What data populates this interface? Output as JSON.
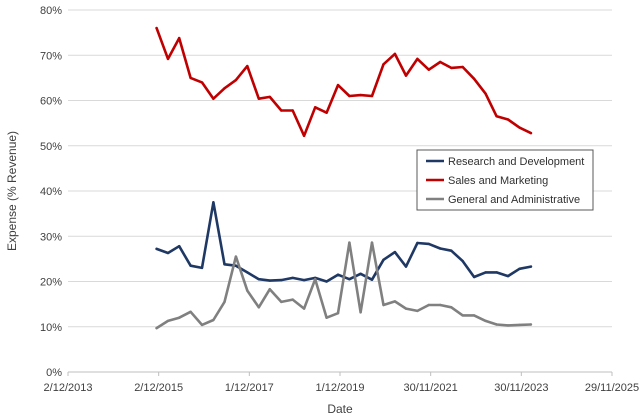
{
  "chart_data": {
    "type": "line",
    "xlabel": "Date",
    "ylabel": "Expense (% Revenue)",
    "xlim": [
      "2013-12-02",
      "2025-11-29"
    ],
    "ylim": [
      0,
      80
    ],
    "grid": "horizontal",
    "legend_position": "right",
    "x_ticks": [
      "2/12/2013",
      "2/12/2015",
      "1/12/2017",
      "1/12/2019",
      "30/11/2021",
      "30/11/2023",
      "29/11/2025"
    ],
    "y_ticks": [
      "0%",
      "10%",
      "20%",
      "30%",
      "40%",
      "50%",
      "60%",
      "70%",
      "80%"
    ],
    "y_tick_values": [
      0,
      10,
      20,
      30,
      40,
      50,
      60,
      70,
      80
    ],
    "x_tick_dates": [
      "2013-12-02",
      "2015-12-02",
      "2017-12-01",
      "2019-12-01",
      "2021-11-30",
      "2023-11-30",
      "2025-11-29"
    ],
    "series": [
      {
        "name": "Research and Development",
        "color": "#1f3864",
        "points": [
          [
            "2015-11-15",
            27.2
          ],
          [
            "2016-02-15",
            26.3
          ],
          [
            "2016-05-15",
            27.8
          ],
          [
            "2016-08-15",
            23.5
          ],
          [
            "2016-11-15",
            23.0
          ],
          [
            "2017-02-15",
            37.5
          ],
          [
            "2017-05-15",
            23.8
          ],
          [
            "2017-08-15",
            23.5
          ],
          [
            "2017-11-15",
            22.0
          ],
          [
            "2018-02-15",
            20.5
          ],
          [
            "2018-05-15",
            20.2
          ],
          [
            "2018-08-15",
            20.3
          ],
          [
            "2018-11-15",
            20.8
          ],
          [
            "2019-02-15",
            20.3
          ],
          [
            "2019-05-15",
            20.8
          ],
          [
            "2019-08-15",
            20.0
          ],
          [
            "2019-11-15",
            21.5
          ],
          [
            "2020-02-15",
            20.5
          ],
          [
            "2020-05-15",
            21.7
          ],
          [
            "2020-08-15",
            20.4
          ],
          [
            "2020-11-15",
            24.8
          ],
          [
            "2021-02-15",
            26.5
          ],
          [
            "2021-05-15",
            23.3
          ],
          [
            "2021-08-15",
            28.5
          ],
          [
            "2021-11-15",
            28.3
          ],
          [
            "2022-02-15",
            27.3
          ],
          [
            "2022-05-15",
            26.8
          ],
          [
            "2022-08-15",
            24.5
          ],
          [
            "2022-11-15",
            21.0
          ],
          [
            "2023-02-15",
            22.0
          ],
          [
            "2023-05-15",
            22.0
          ],
          [
            "2023-08-15",
            21.2
          ],
          [
            "2023-11-15",
            22.8
          ],
          [
            "2024-02-15",
            23.3
          ]
        ]
      },
      {
        "name": "Sales and Marketing",
        "color": "#c00000",
        "points": [
          [
            "2015-11-15",
            76.0
          ],
          [
            "2016-02-15",
            69.2
          ],
          [
            "2016-05-15",
            73.8
          ],
          [
            "2016-08-15",
            65.0
          ],
          [
            "2016-11-15",
            64.0
          ],
          [
            "2017-02-15",
            60.4
          ],
          [
            "2017-05-15",
            62.7
          ],
          [
            "2017-08-15",
            64.5
          ],
          [
            "2017-11-15",
            67.6
          ],
          [
            "2018-02-15",
            60.4
          ],
          [
            "2018-05-15",
            60.8
          ],
          [
            "2018-08-15",
            57.8
          ],
          [
            "2018-11-15",
            57.8
          ],
          [
            "2019-02-15",
            52.2
          ],
          [
            "2019-05-15",
            58.5
          ],
          [
            "2019-08-15",
            57.3
          ],
          [
            "2019-11-15",
            63.4
          ],
          [
            "2020-02-15",
            61.0
          ],
          [
            "2020-05-15",
            61.2
          ],
          [
            "2020-08-15",
            61.0
          ],
          [
            "2020-11-15",
            68.0
          ],
          [
            "2021-02-15",
            70.3
          ],
          [
            "2021-05-15",
            65.5
          ],
          [
            "2021-08-15",
            69.2
          ],
          [
            "2021-11-15",
            66.8
          ],
          [
            "2022-02-15",
            68.5
          ],
          [
            "2022-05-15",
            67.2
          ],
          [
            "2022-08-15",
            67.4
          ],
          [
            "2022-11-15",
            64.8
          ],
          [
            "2023-02-15",
            61.5
          ],
          [
            "2023-05-15",
            56.5
          ],
          [
            "2023-08-15",
            55.8
          ],
          [
            "2023-11-15",
            54.0
          ],
          [
            "2024-02-15",
            52.8
          ]
        ]
      },
      {
        "name": "General and Administrative",
        "color": "#808080",
        "points": [
          [
            "2015-11-15",
            9.7
          ],
          [
            "2016-02-15",
            11.3
          ],
          [
            "2016-05-15",
            12.0
          ],
          [
            "2016-08-15",
            13.3
          ],
          [
            "2016-11-15",
            10.4
          ],
          [
            "2017-02-15",
            11.5
          ],
          [
            "2017-05-15",
            15.5
          ],
          [
            "2017-08-15",
            25.5
          ],
          [
            "2017-11-15",
            18.0
          ],
          [
            "2018-02-15",
            14.3
          ],
          [
            "2018-05-15",
            18.3
          ],
          [
            "2018-08-15",
            15.5
          ],
          [
            "2018-11-15",
            16.0
          ],
          [
            "2019-02-15",
            14.0
          ],
          [
            "2019-05-15",
            20.5
          ],
          [
            "2019-08-15",
            12.0
          ],
          [
            "2019-11-15",
            13.0
          ],
          [
            "2020-02-15",
            28.6
          ],
          [
            "2020-05-15",
            13.2
          ],
          [
            "2020-08-15",
            28.6
          ],
          [
            "2020-11-15",
            14.8
          ],
          [
            "2021-02-15",
            15.6
          ],
          [
            "2021-05-15",
            14.0
          ],
          [
            "2021-08-15",
            13.5
          ],
          [
            "2021-11-15",
            14.8
          ],
          [
            "2022-02-15",
            14.8
          ],
          [
            "2022-05-15",
            14.3
          ],
          [
            "2022-08-15",
            12.5
          ],
          [
            "2022-11-15",
            12.5
          ],
          [
            "2023-02-15",
            11.3
          ],
          [
            "2023-05-15",
            10.5
          ],
          [
            "2023-08-15",
            10.3
          ],
          [
            "2023-11-15",
            10.4
          ],
          [
            "2024-02-15",
            10.5
          ]
        ]
      }
    ]
  }
}
